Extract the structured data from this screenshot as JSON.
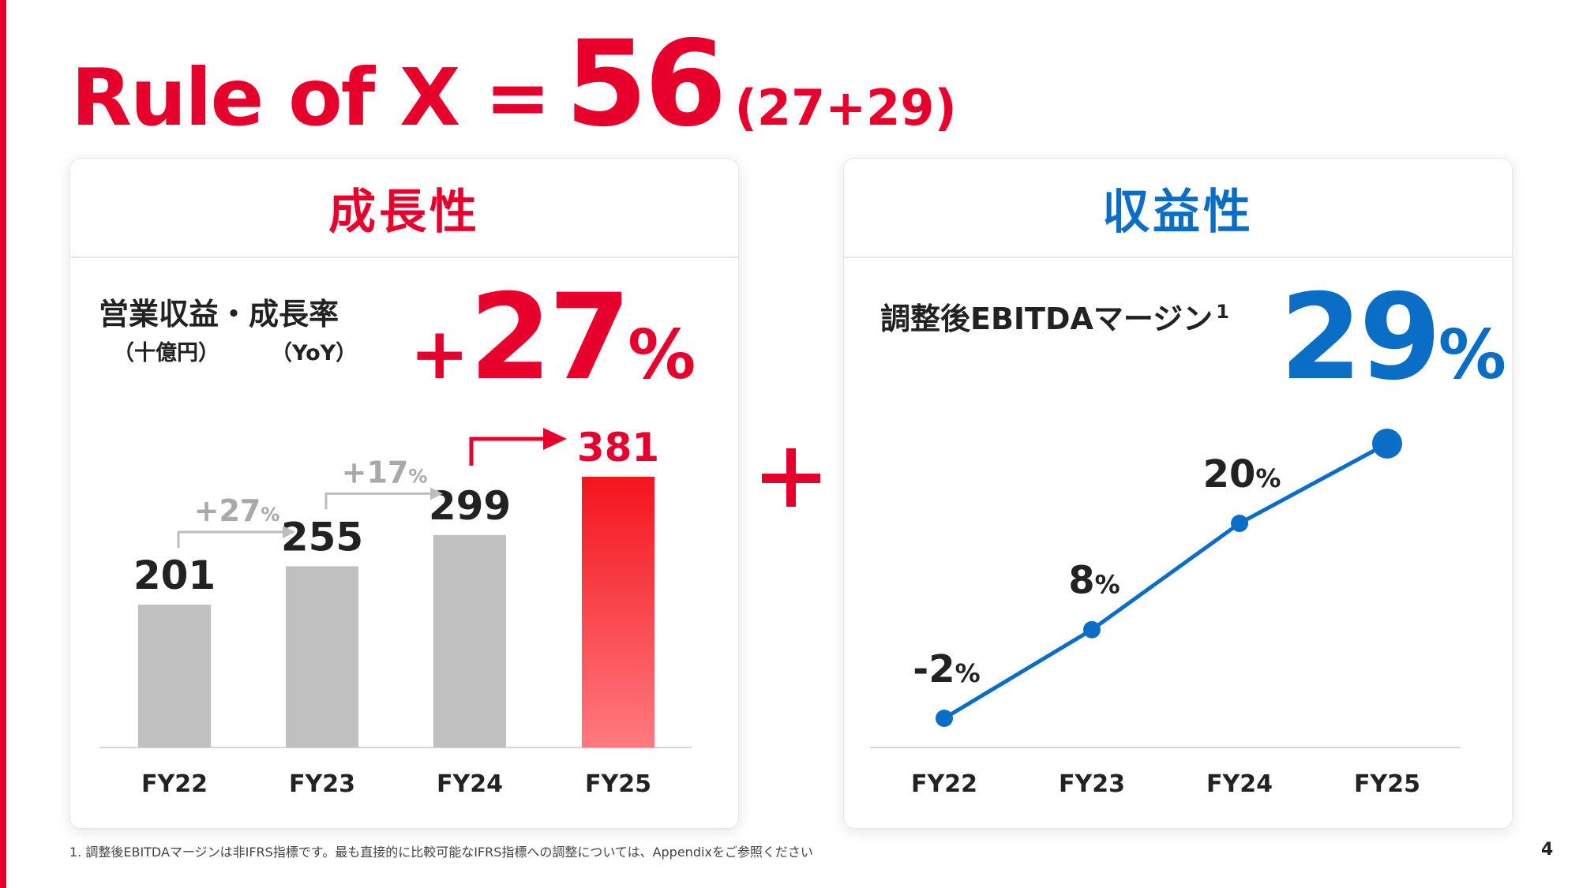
{
  "title": {
    "main": "Rule of X =",
    "value": "56",
    "sub": "(27+29)"
  },
  "growth": {
    "header": "成長性",
    "metric_label": "営業収益・成長率",
    "unit_label": "（十億円）",
    "yoy_label": "（YoY）",
    "kpi_prefix": "+",
    "kpi_value": "27",
    "kpi_unit": "%"
  },
  "profit": {
    "header": "収益性",
    "metric_label": "調整後EBITDAマージン",
    "footnote_mark": "1",
    "kpi_value": "29",
    "kpi_unit": "%"
  },
  "footnote": "1. 調整後EBITDAマージンは非IFRS指標です。最も直接的に比較可能なIFRS指標への調整については、Appendixをご参照ください",
  "page_number": "4",
  "colors": {
    "red": "#e8002d",
    "blue": "#0a6ec7",
    "gray_bar": "#c0c0c0",
    "arrow_gray": "#bdbdbd"
  },
  "chart_data": [
    {
      "type": "bar",
      "title": "営業収益・成長率",
      "categories": [
        "FY22",
        "FY23",
        "FY24",
        "FY25"
      ],
      "values": [
        201,
        255,
        299,
        381
      ],
      "value_labels": [
        "201",
        "255",
        "299",
        "381"
      ],
      "growth_labels": [
        {
          "from": "FY22",
          "to": "FY23",
          "label": "+27",
          "unit": "%"
        },
        {
          "from": "FY23",
          "to": "FY24",
          "label": "+17",
          "unit": "%"
        }
      ],
      "highlight_category": "FY25",
      "ylim": [
        0,
        381
      ],
      "grid": false
    },
    {
      "type": "line",
      "title": "調整後EBITDAマージン",
      "categories": [
        "FY22",
        "FY23",
        "FY24",
        "FY25"
      ],
      "values": [
        -2,
        8,
        20,
        29
      ],
      "value_labels": [
        {
          "num": "-2",
          "unit": "%"
        },
        {
          "num": "8",
          "unit": "%"
        },
        {
          "num": "20",
          "unit": "%"
        },
        null
      ],
      "ylim": [
        -2,
        29
      ],
      "grid": false
    }
  ]
}
